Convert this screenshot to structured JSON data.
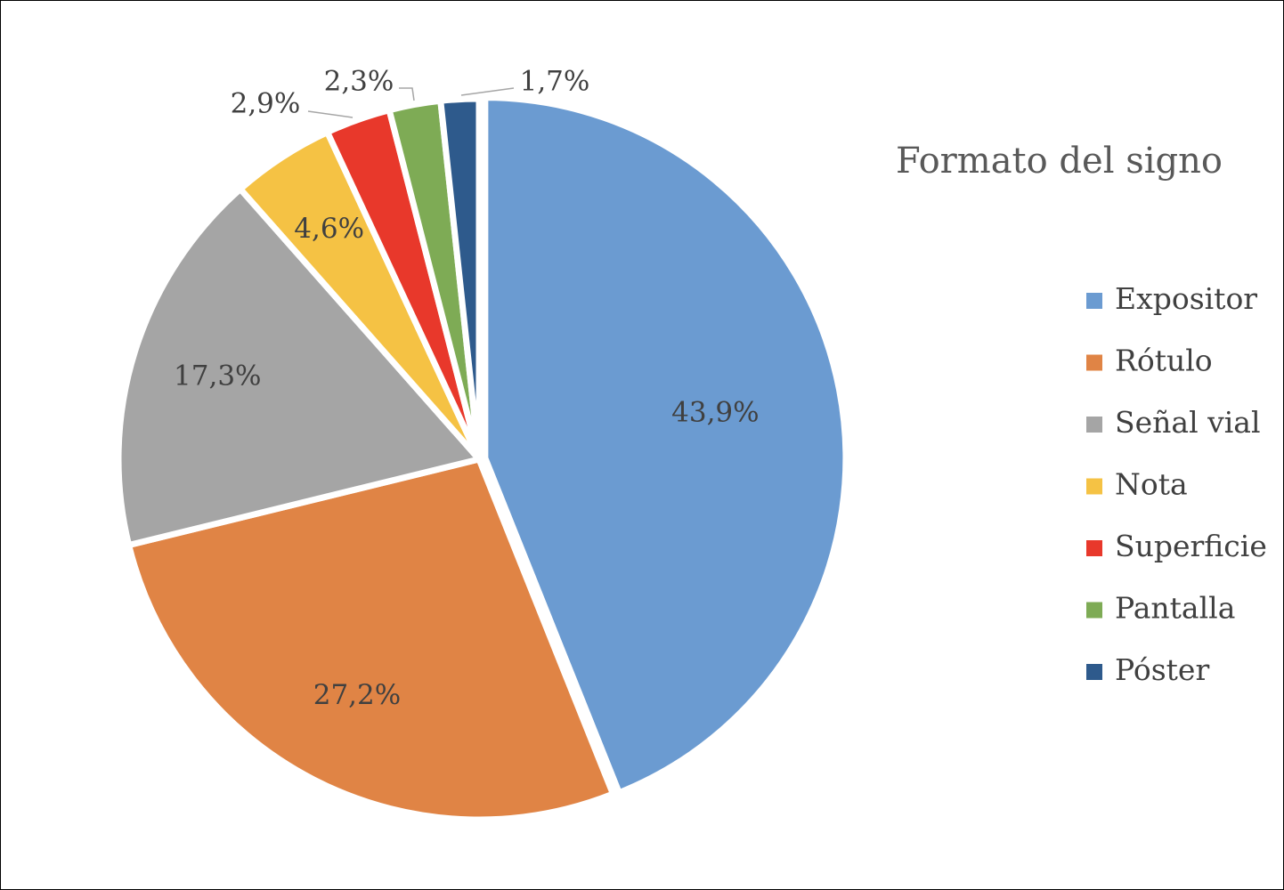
{
  "chart_data": {
    "type": "pie",
    "legend_title": "Formato del signo",
    "legend_position": "right",
    "categories": [
      "Expositor",
      "Rótulo",
      "Señal vial",
      "Nota",
      "Superficie",
      "Pantalla",
      "Póster"
    ],
    "values": [
      43.9,
      27.2,
      17.3,
      4.6,
      2.9,
      2.3,
      1.7
    ],
    "labels": [
      "43,9%",
      "27,2%",
      "17,3%",
      "4,6%",
      "2,9%",
      "2,3%",
      "1,7%"
    ],
    "colors": [
      "#6b9bd1",
      "#e08445",
      "#a5a5a5",
      "#f5c244",
      "#e8382b",
      "#7eab55",
      "#2e5a8c"
    ],
    "start_angle_deg": 0,
    "direction": "clockwise"
  }
}
